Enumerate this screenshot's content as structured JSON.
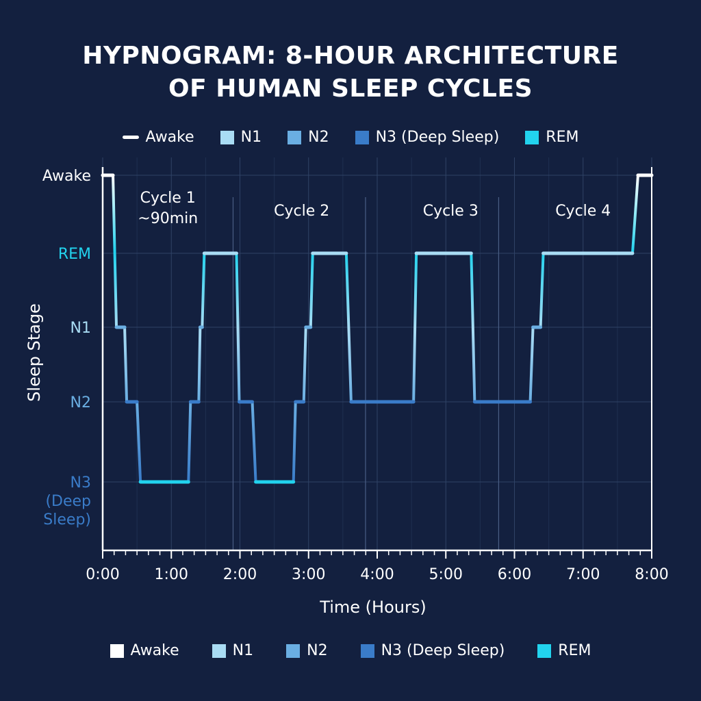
{
  "title_lines": [
    "HYPNOGRAM: 8-HOUR ARCHITECTURE",
    "OF HUMAN SLEEP CYCLES"
  ],
  "legend": [
    {
      "label": "Awake",
      "color": "#ffffff"
    },
    {
      "label": "N1",
      "color": "#a9dcf4"
    },
    {
      "label": "N2",
      "color": "#6aaee2"
    },
    {
      "label": "N3 (Deep Sleep)",
      "color": "#3a7cc9"
    },
    {
      "label": "REM",
      "color": "#22d3ee"
    }
  ],
  "chart_data": {
    "type": "line",
    "xlabel": "Time (Hours)",
    "ylabel": "Sleep Stage",
    "x_ticks": [
      "0:00",
      "1:00",
      "2:00",
      "3:00",
      "4:00",
      "5:00",
      "6:00",
      "7:00",
      "8:00"
    ],
    "xlim": [
      0,
      8
    ],
    "y_categories": [
      "Awake",
      "REM",
      "N1",
      "N2",
      "N3 (Deep Sleep)"
    ],
    "y_tick_labels": [
      {
        "lines": [
          "Awake"
        ],
        "color": "#ffffff"
      },
      {
        "lines": [
          "REM"
        ],
        "color": "#22d3ee"
      },
      {
        "lines": [
          "N1"
        ],
        "color": "#a9dcf4"
      },
      {
        "lines": [
          "N2"
        ],
        "color": "#6aaee2"
      },
      {
        "lines": [
          "N3",
          "(Deep",
          "Sleep)"
        ],
        "color": "#3a7cc9"
      }
    ],
    "grid": true,
    "cycles": [
      {
        "lines": [
          "Cycle 1",
          "~90min"
        ],
        "x": 0.95
      },
      {
        "lines": [
          "Cycle 2"
        ],
        "x": 2.9
      },
      {
        "lines": [
          "Cycle 3"
        ],
        "x": 5.07
      },
      {
        "lines": [
          "Cycle 4"
        ],
        "x": 7.0
      }
    ],
    "cycle_boundaries": [
      1.9,
      3.83,
      5.77
    ],
    "series": [
      {
        "segments": [
          {
            "stage": "Awake",
            "x0": 0.0,
            "x1": 0.15
          },
          {
            "stage": "N1",
            "x0": 0.2,
            "x1": 0.32
          },
          {
            "stage": "N2",
            "x0": 0.35,
            "x1": 0.5
          },
          {
            "stage": "N3 (Deep Sleep)",
            "x0": 0.55,
            "x1": 1.25
          },
          {
            "stage": "N2",
            "x0": 1.28,
            "x1": 1.4
          },
          {
            "stage": "N1",
            "x0": 1.42,
            "x1": 1.45
          },
          {
            "stage": "REM",
            "x0": 1.48,
            "x1": 1.95
          },
          {
            "stage": "N2",
            "x0": 1.99,
            "x1": 2.18
          },
          {
            "stage": "N3 (Deep Sleep)",
            "x0": 2.23,
            "x1": 2.78
          },
          {
            "stage": "N2",
            "x0": 2.81,
            "x1": 2.93
          },
          {
            "stage": "N1",
            "x0": 2.96,
            "x1": 3.03
          },
          {
            "stage": "REM",
            "x0": 3.06,
            "x1": 3.55
          },
          {
            "stage": "N2",
            "x0": 3.62,
            "x1": 4.53
          },
          {
            "stage": "REM",
            "x0": 4.57,
            "x1": 5.37
          },
          {
            "stage": "N2",
            "x0": 5.42,
            "x1": 6.23
          },
          {
            "stage": "N1",
            "x0": 6.27,
            "x1": 6.38
          },
          {
            "stage": "REM",
            "x0": 6.42,
            "x1": 7.72
          },
          {
            "stage": "Awake",
            "x0": 7.8,
            "x1": 8.0
          }
        ]
      }
    ]
  }
}
